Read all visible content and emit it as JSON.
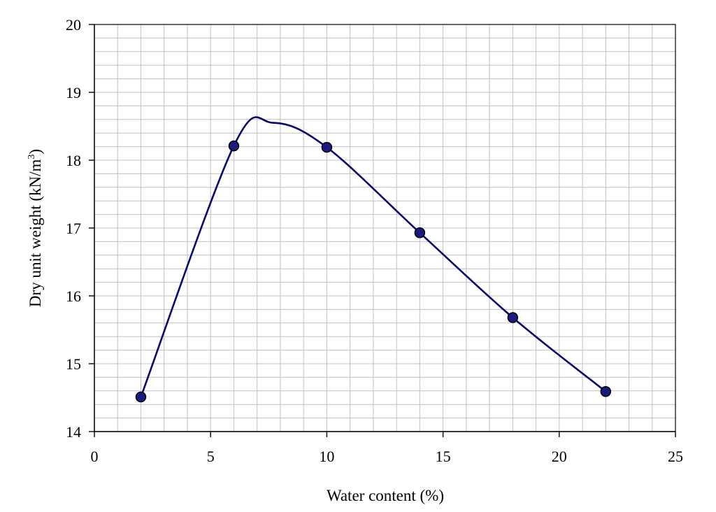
{
  "chart_data": {
    "type": "scatter",
    "title": "",
    "xlabel": "Water content (%)",
    "ylabel": {
      "text": "Dry unit weight (kN/m",
      "superscript": "3",
      "suffix": ")"
    },
    "xlim": [
      0,
      25
    ],
    "ylim": [
      14,
      20
    ],
    "xticks": [
      0,
      5,
      10,
      15,
      20,
      25
    ],
    "yticks": [
      14,
      15,
      16,
      17,
      18,
      19,
      20
    ],
    "x_minor_step": 1,
    "y_minor_step": 0.2,
    "grid": true,
    "legend": "none",
    "series": [
      {
        "x": [
          2,
          6,
          10,
          14,
          18,
          22
        ],
        "y": [
          14.51,
          18.21,
          18.19,
          16.93,
          15.68,
          14.59
        ],
        "marker": "circle",
        "curve": "smooth"
      }
    ],
    "curve_peak": {
      "x": 7.7,
      "y": 18.55
    },
    "colors": {
      "line": "#0a0a6e",
      "marker_fill": "#1a1a80",
      "marker_stroke": "#000000",
      "grid": "#c0c0c0",
      "axis": "#000000"
    }
  }
}
